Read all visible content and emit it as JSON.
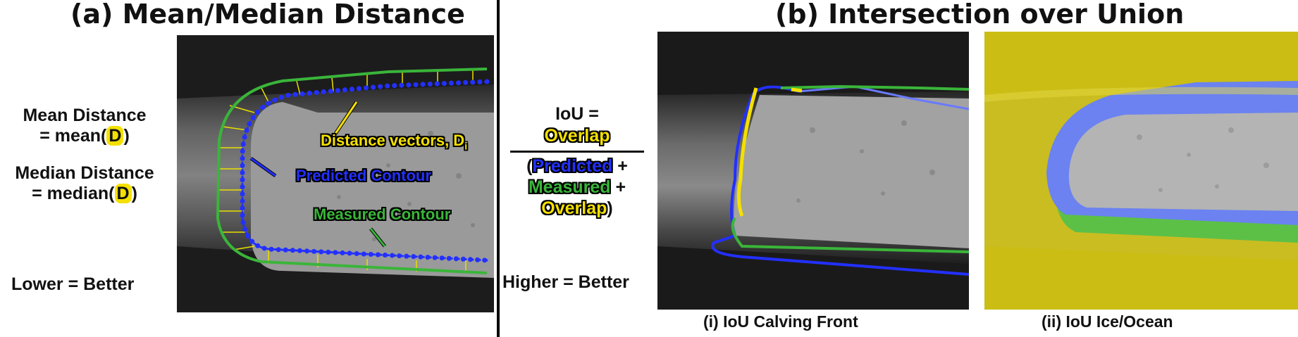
{
  "panel_a": {
    "title": "(a) Mean/Median Distance",
    "mean_label": "Mean Distance",
    "mean_formula_prefix": "= mean(",
    "mean_formula_symbol": "D",
    "mean_formula_suffix": ")",
    "median_label": "Median Distance",
    "median_formula_prefix": "= median(",
    "median_formula_symbol": "D",
    "median_formula_suffix": ")",
    "note": "Lower = Better",
    "annotations": {
      "distance_vectors": "Distance vectors, D",
      "distance_vectors_sub": "i",
      "predicted": "Predicted Contour",
      "measured": "Measured Contour"
    }
  },
  "panel_b": {
    "title": "(b) Intersection over Union",
    "iou_label": "IoU =",
    "numerator": "Overlap",
    "den_open": "(",
    "den_predicted": "Predicted",
    "den_plus1": " +",
    "den_measured": "Measured",
    "den_plus2": " +",
    "den_overlap": "Overlap",
    "den_close": ")",
    "note": "Higher = Better",
    "caption_i": "(i) IoU Calving Front",
    "caption_ii": "(ii) IoU Ice/Ocean"
  },
  "colors": {
    "predicted": "#2330ff",
    "measured": "#3ab53a",
    "overlap": "#f4e000"
  }
}
